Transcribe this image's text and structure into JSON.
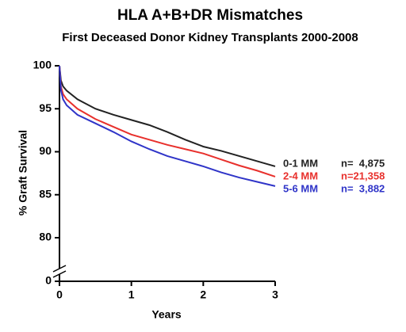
{
  "chart_data": {
    "type": "line",
    "title": "HLA A+B+DR Mismatches",
    "subtitle": "First Deceased Donor Kidney Transplants 2000-2008",
    "x_label": "Years",
    "y_label": "% Graft Survival",
    "x": [
      0,
      0.02,
      0.05,
      0.1,
      0.25,
      0.5,
      0.75,
      1,
      1.25,
      1.5,
      1.75,
      2,
      2.25,
      2.5,
      2.75,
      3
    ],
    "series": [
      {
        "name": "0-1 MM",
        "n_label": "n=  4,875",
        "color": "#222222",
        "values": [
          100,
          98.3,
          97.6,
          97.1,
          96.1,
          95.0,
          94.3,
          93.7,
          93.1,
          92.3,
          91.4,
          90.6,
          90.1,
          89.5,
          88.9,
          88.3
        ]
      },
      {
        "name": "2-4 MM",
        "n_label": "n=21,358",
        "color": "#e8302c",
        "values": [
          100,
          97.6,
          96.7,
          96.1,
          95.0,
          93.8,
          92.9,
          92.0,
          91.4,
          90.8,
          90.3,
          89.8,
          89.1,
          88.4,
          87.8,
          87.1
        ]
      },
      {
        "name": "5-6 MM",
        "n_label": "n=  3,882",
        "color": "#2f34c8",
        "values": [
          100,
          97.2,
          96.1,
          95.4,
          94.3,
          93.3,
          92.3,
          91.2,
          90.3,
          89.5,
          88.9,
          88.3,
          87.6,
          87.0,
          86.5,
          86.0
        ]
      }
    ],
    "xlim": [
      0,
      3
    ],
    "xticks": [
      0,
      1,
      2,
      3
    ],
    "ylim": [
      0,
      100
    ],
    "yticks": [
      0,
      80,
      85,
      90,
      95,
      100
    ],
    "y_axis_break": true
  }
}
